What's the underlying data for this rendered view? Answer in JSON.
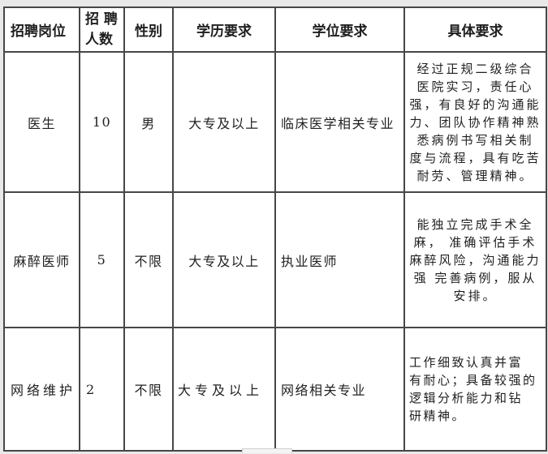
{
  "colors": {
    "page_background": "#e9e9e9",
    "cell_background": "#ffffff",
    "border": "#474747",
    "text": "#1f1f1f"
  },
  "table": {
    "columns": [
      {
        "key": "position",
        "label": "招聘岗位"
      },
      {
        "key": "count",
        "label": "招 聘\n人数"
      },
      {
        "key": "gender",
        "label": "性别"
      },
      {
        "key": "education",
        "label": "学历要求"
      },
      {
        "key": "degree",
        "label": "学位要求"
      },
      {
        "key": "requirements",
        "label": "具体要求"
      }
    ],
    "rows": [
      {
        "position": "医生",
        "count": "10",
        "gender": "男",
        "education": "大专及以上",
        "degree": "临床医学相关专业",
        "requirements": "经过正规二级综合\n医院实习，责任心\n强，有良好的沟通能\n力、团队协作精神熟\n悉病例书写相关制\n度与流程，具有吃苦\n耐劳、管理精神。"
      },
      {
        "position": "麻醉医师",
        "count": "5",
        "gender": "不限",
        "education": "大专及以上",
        "degree": "执业医师",
        "requirements": "能独立完成手术全\n麻， 准确评估手术\n麻醉风险，沟通能力\n强 完善病例，服从\n安排。"
      },
      {
        "position": "网络维护",
        "count": "2",
        "gender": "不限",
        "education": "大专及以上",
        "degree": "网络相关专业",
        "requirements": "工作细致认真并富\n有耐心；具备较强的\n逻辑分析能力和钻\n研精神。"
      }
    ]
  }
}
